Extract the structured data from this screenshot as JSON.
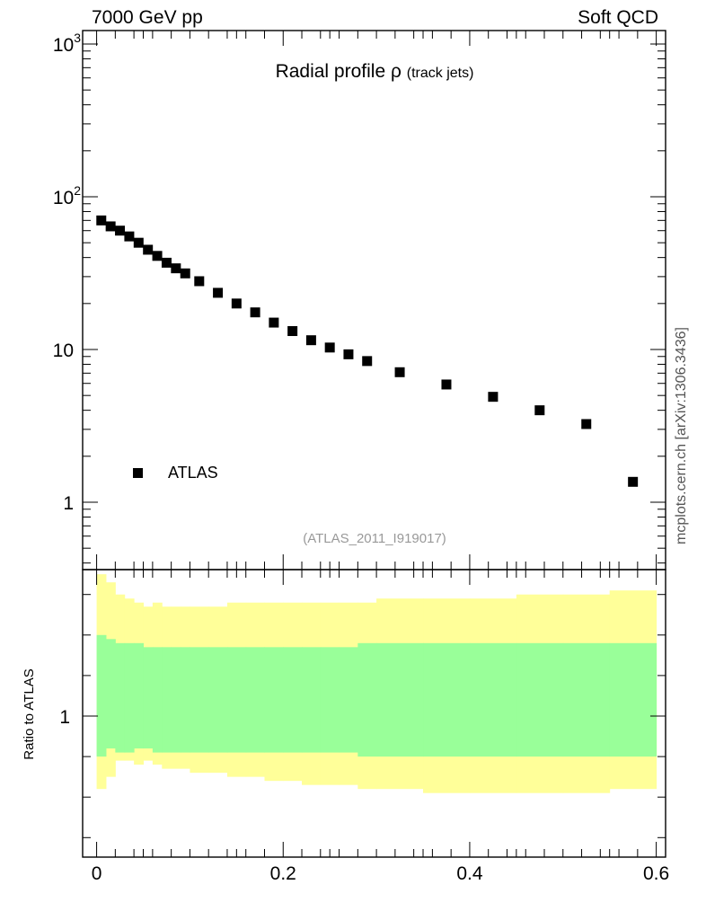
{
  "header": {
    "left": "7000 GeV pp",
    "right": "Soft QCD"
  },
  "side_credit": "mcplots.cern.ch [arXiv:1306.3436]",
  "chart_data": [
    {
      "type": "scatter",
      "title": "Radial profile",
      "title_symbol": "ρ",
      "title_suffix": "(track jets)",
      "analysis_label": "(ATLAS_2011_I919017)",
      "y_scale": "log",
      "ylim": [
        0.4,
        1200
      ],
      "xlim": [
        -0.015,
        0.61
      ],
      "y_tick_labels": [
        {
          "value": 1,
          "base": "1",
          "exp": ""
        },
        {
          "value": 10,
          "base": "10",
          "exp": ""
        },
        {
          "value": 100,
          "base": "10",
          "exp": "2"
        },
        {
          "value": 1000,
          "base": "10",
          "exp": "3"
        }
      ],
      "legend": {
        "placement": "bottom-left",
        "entries": [
          "ATLAS"
        ]
      },
      "series": [
        {
          "name": "ATLAS",
          "color": "#000000",
          "marker": "square",
          "x": [
            0.005,
            0.015,
            0.025,
            0.035,
            0.045,
            0.055,
            0.065,
            0.075,
            0.085,
            0.095,
            0.11,
            0.13,
            0.15,
            0.17,
            0.19,
            0.21,
            0.23,
            0.25,
            0.27,
            0.29,
            0.325,
            0.375,
            0.425,
            0.475,
            0.525,
            0.575
          ],
          "y": [
            70,
            64,
            60,
            55,
            50,
            45,
            41,
            37,
            34,
            31.5,
            28,
            23.5,
            20,
            17.5,
            15,
            13.2,
            11.5,
            10.3,
            9.3,
            8.4,
            7.1,
            5.9,
            4.9,
            4.0,
            3.25,
            1.36
          ]
        }
      ]
    },
    {
      "type": "area",
      "ylabel": "Ratio to ATLAS",
      "xlim": [
        -0.015,
        0.61
      ],
      "y_ticks": [
        1
      ],
      "x_ticks": [
        0,
        0.2,
        0.4,
        0.6
      ],
      "x_tick_labels": [
        "0",
        "0.2",
        "0.4",
        "0.6"
      ],
      "bands": [
        {
          "name": "total uncertainty",
          "color": "#ffff99",
          "bin_edges": [
            0,
            0.01,
            0.02,
            0.03,
            0.04,
            0.05,
            0.06,
            0.07,
            0.08,
            0.09,
            0.1,
            0.12,
            0.14,
            0.16,
            0.18,
            0.2,
            0.22,
            0.24,
            0.26,
            0.28,
            0.3,
            0.35,
            0.4,
            0.45,
            0.5,
            0.55,
            0.6
          ],
          "upper": [
            1.35,
            1.33,
            1.3,
            1.29,
            1.28,
            1.27,
            1.28,
            1.27,
            1.27,
            1.27,
            1.27,
            1.27,
            1.28,
            1.28,
            1.28,
            1.28,
            1.28,
            1.28,
            1.28,
            1.28,
            1.29,
            1.29,
            1.29,
            1.3,
            1.3,
            1.31
          ],
          "lower": [
            0.82,
            0.85,
            0.89,
            0.89,
            0.88,
            0.89,
            0.88,
            0.87,
            0.87,
            0.87,
            0.86,
            0.86,
            0.85,
            0.85,
            0.84,
            0.84,
            0.83,
            0.83,
            0.83,
            0.82,
            0.82,
            0.81,
            0.81,
            0.81,
            0.81,
            0.82
          ]
        },
        {
          "name": "statistical uncertainty",
          "color": "#99ff99",
          "bin_edges": [
            0,
            0.01,
            0.02,
            0.03,
            0.04,
            0.05,
            0.06,
            0.07,
            0.08,
            0.09,
            0.1,
            0.12,
            0.14,
            0.16,
            0.18,
            0.2,
            0.22,
            0.24,
            0.26,
            0.28,
            0.3,
            0.35,
            0.4,
            0.45,
            0.5,
            0.55,
            0.6
          ],
          "upper": [
            1.2,
            1.19,
            1.18,
            1.18,
            1.18,
            1.17,
            1.17,
            1.17,
            1.17,
            1.17,
            1.17,
            1.17,
            1.17,
            1.17,
            1.17,
            1.17,
            1.17,
            1.17,
            1.17,
            1.18,
            1.18,
            1.18,
            1.18,
            1.18,
            1.18,
            1.18
          ],
          "lower": [
            0.9,
            0.92,
            0.91,
            0.91,
            0.92,
            0.92,
            0.91,
            0.91,
            0.91,
            0.91,
            0.91,
            0.91,
            0.91,
            0.91,
            0.91,
            0.91,
            0.91,
            0.91,
            0.91,
            0.9,
            0.9,
            0.9,
            0.9,
            0.9,
            0.9,
            0.9
          ]
        }
      ]
    }
  ]
}
